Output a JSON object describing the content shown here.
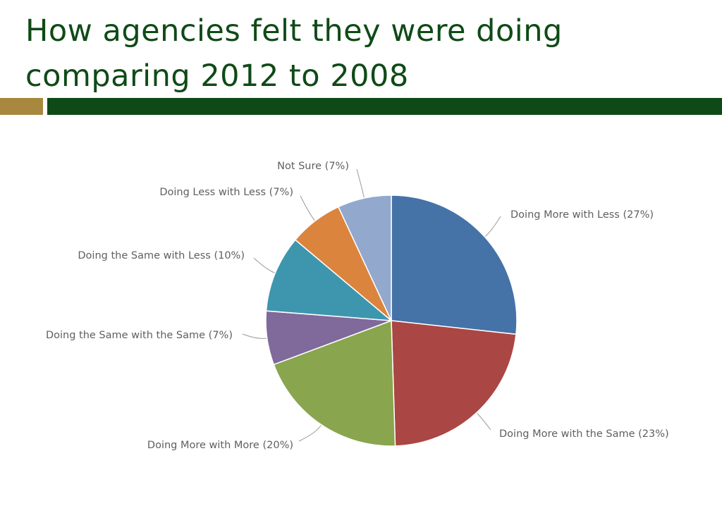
{
  "slide": {
    "title_line1": "How agencies felt they were doing",
    "title_line2": "comparing 2012 to 2008",
    "accent_colors": {
      "title": "#0f4a17",
      "bar_left": "#a8883e",
      "bar_right": "#0d4a17"
    }
  },
  "chart_data": {
    "type": "pie",
    "start": "12 o'clock",
    "direction": "clockwise",
    "slices": [
      {
        "label": "Doing More with Less (27%)",
        "value": 27,
        "color": "#4572a7"
      },
      {
        "label": "Doing More with the Same (23%)",
        "value": 23,
        "color": "#aa4643"
      },
      {
        "label": "Doing More with More (20%)",
        "value": 20,
        "color": "#89a54e"
      },
      {
        "label": "Doing the Same with the Same (7%)",
        "value": 7,
        "color": "#80699b"
      },
      {
        "label": "Doing the Same with Less (10%)",
        "value": 10,
        "color": "#3d96ae"
      },
      {
        "label": "Doing Less with Less (7%)",
        "value": 7,
        "color": "#db843d"
      },
      {
        "label": "Not Sure (7%)",
        "value": 7,
        "color": "#92a8cd"
      }
    ]
  }
}
